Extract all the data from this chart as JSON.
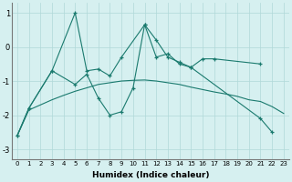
{
  "series1_x": [
    0,
    1,
    3,
    5,
    6,
    7,
    8,
    9,
    11,
    12,
    13,
    14,
    15,
    16,
    17,
    21
  ],
  "series1_y": [
    -2.6,
    -1.8,
    -0.7,
    1.0,
    -0.7,
    -0.65,
    -0.85,
    -0.3,
    0.65,
    0.2,
    -0.3,
    -0.45,
    -0.6,
    -0.35,
    -0.35,
    -0.5
  ],
  "series2_x": [
    0,
    1,
    3,
    5,
    6,
    7,
    8,
    9,
    10,
    11,
    12,
    13,
    14,
    15,
    21,
    22
  ],
  "series2_y": [
    -2.6,
    -1.8,
    -0.7,
    -1.1,
    -0.8,
    -1.5,
    -2.0,
    -1.9,
    -1.2,
    0.65,
    -0.3,
    -0.2,
    -0.5,
    -0.6,
    -2.1,
    -2.5
  ],
  "smooth_x": [
    0,
    1,
    2,
    3,
    4,
    5,
    6,
    7,
    8,
    9,
    10,
    11,
    12,
    13,
    14,
    15,
    16,
    17,
    18,
    19,
    20,
    21,
    22,
    23
  ],
  "smooth_y": [
    -2.6,
    -1.85,
    -1.7,
    -1.55,
    -1.42,
    -1.3,
    -1.2,
    -1.1,
    -1.05,
    -1.0,
    -0.98,
    -0.97,
    -1.0,
    -1.05,
    -1.1,
    -1.18,
    -1.25,
    -1.32,
    -1.38,
    -1.45,
    -1.55,
    -1.6,
    -1.75,
    -1.95
  ],
  "line_color": "#1a7a6e",
  "bg_color": "#d6f0f0",
  "grid_color": "#b0d8d8",
  "xlabel": "Humidex (Indice chaleur)",
  "ylim": [
    -3.3,
    1.3
  ],
  "xlim": [
    -0.5,
    23.5
  ],
  "yticks": [
    -3,
    -2,
    -1,
    0,
    1
  ],
  "xticks": [
    0,
    1,
    2,
    3,
    4,
    5,
    6,
    7,
    8,
    9,
    10,
    11,
    12,
    13,
    14,
    15,
    16,
    17,
    18,
    19,
    20,
    21,
    22,
    23
  ]
}
